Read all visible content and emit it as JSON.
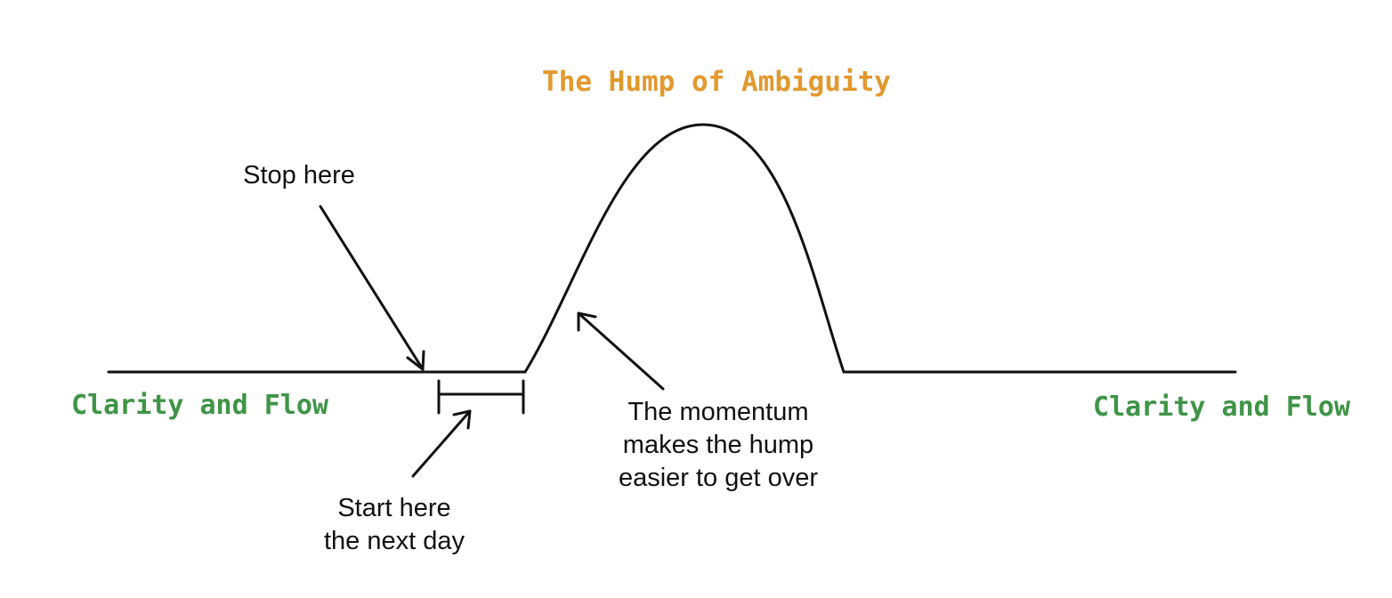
{
  "title": "The Hump of Ambiguity",
  "left_region_label": "Clarity and Flow",
  "right_region_label": "Clarity and Flow",
  "annotations": {
    "stop": "Stop here",
    "start_line1": "Start here",
    "start_line2": "the next day",
    "momentum_line1": "The momentum",
    "momentum_line2": "makes the hump",
    "momentum_line3": "easier to get over"
  },
  "colors": {
    "title": "#E3982E",
    "region_label": "#3F9447",
    "ink": "#111111"
  }
}
